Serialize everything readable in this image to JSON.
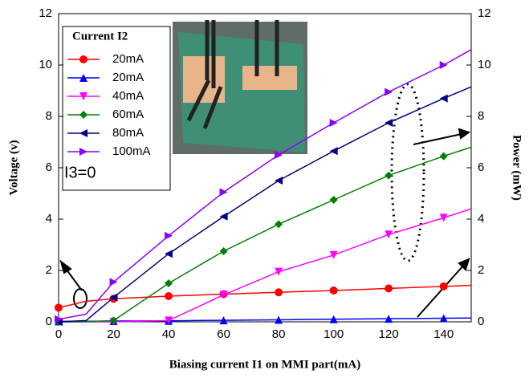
{
  "chart_data": {
    "type": "line",
    "xlabel": "Biasing current I1 on MMI part(mA)",
    "ylabel": "Voltage (v)",
    "y2label": "Power (mW)",
    "legend_title": "Current I2",
    "annotations": [
      "I3=0"
    ],
    "x": [
      0,
      10,
      20,
      40,
      60,
      80,
      100,
      120,
      140,
      150
    ],
    "xlim": [
      0,
      150
    ],
    "xticks": [
      0,
      20,
      40,
      60,
      80,
      100,
      120,
      140
    ],
    "ylim": [
      0,
      12
    ],
    "yticks": [
      0,
      2,
      4,
      6,
      8,
      10,
      12
    ],
    "y2lim": [
      0,
      12
    ],
    "y2ticks": [
      0,
      2,
      4,
      6,
      8,
      10,
      12
    ],
    "legend": "upper left",
    "series": [
      {
        "name": "20mA",
        "color": "#ff0000",
        "marker": "circle",
        "axis": "y",
        "values": [
          0.55,
          0.8,
          0.9,
          1.0,
          1.08,
          1.15,
          1.22,
          1.3,
          1.38,
          1.42
        ]
      },
      {
        "name": "20mA",
        "color": "#0000ff",
        "marker": "triangle-up",
        "axis": "y2",
        "values": [
          0.02,
          0.02,
          0.03,
          0.04,
          0.06,
          0.08,
          0.1,
          0.12,
          0.14,
          0.15
        ]
      },
      {
        "name": "40mA",
        "color": "#ff00ff",
        "marker": "triangle-down",
        "axis": "y2",
        "values": [
          0.0,
          0.0,
          0.0,
          0.05,
          1.05,
          1.95,
          2.6,
          3.4,
          4.05,
          4.4
        ]
      },
      {
        "name": "60mA",
        "color": "#008000",
        "marker": "diamond",
        "axis": "y2",
        "values": [
          0.0,
          0.0,
          0.05,
          1.5,
          2.75,
          3.8,
          4.75,
          5.7,
          6.45,
          6.8
        ]
      },
      {
        "name": "80mA",
        "color": "#000080",
        "marker": "triangle-left",
        "axis": "y2",
        "values": [
          0.0,
          0.05,
          0.95,
          2.65,
          4.1,
          5.5,
          6.65,
          7.75,
          8.7,
          9.15
        ]
      },
      {
        "name": "100mA",
        "color": "#8b00ff",
        "marker": "triangle-right",
        "axis": "y2",
        "values": [
          0.1,
          0.3,
          1.55,
          3.35,
          5.05,
          6.5,
          7.75,
          8.95,
          10.0,
          10.6
        ]
      }
    ]
  }
}
